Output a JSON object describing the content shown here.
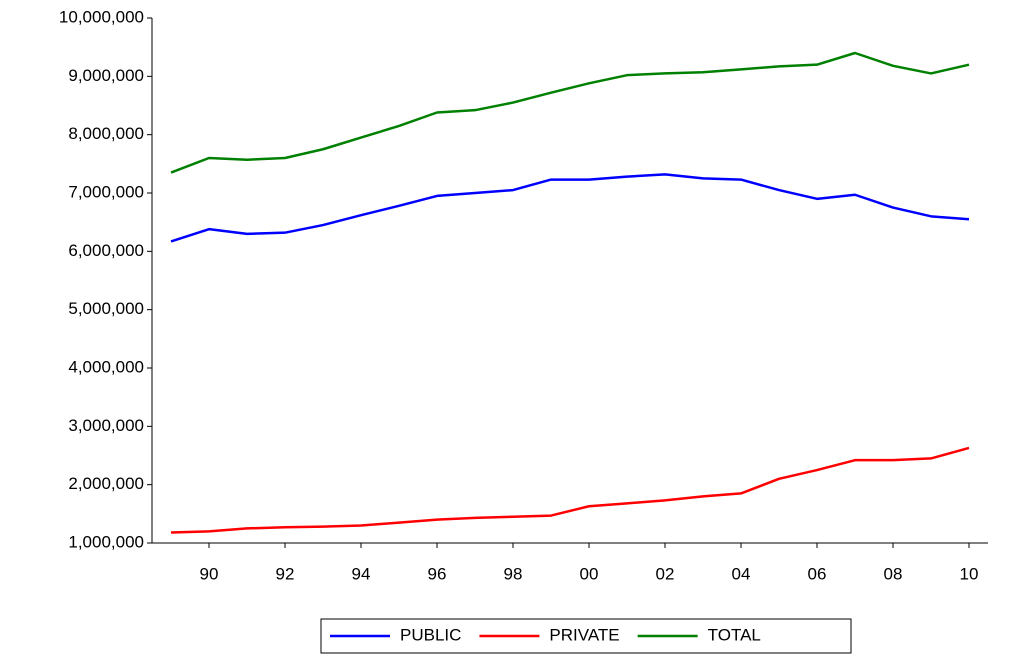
{
  "chart_data": {
    "type": "line",
    "x": [
      1989,
      1990,
      1991,
      1992,
      1993,
      1994,
      1995,
      1996,
      1997,
      1998,
      1999,
      2000,
      2001,
      2002,
      2003,
      2004,
      2005,
      2006,
      2007,
      2008,
      2009,
      2010
    ],
    "series": [
      {
        "name": "PUBLIC",
        "color": "#0000ff",
        "values": [
          6170000,
          6380000,
          6300000,
          6320000,
          6450000,
          6620000,
          6780000,
          6950000,
          7000000,
          7050000,
          7230000,
          7230000,
          7280000,
          7320000,
          7250000,
          7230000,
          7050000,
          6900000,
          6970000,
          6750000,
          6600000,
          6550000
        ]
      },
      {
        "name": "PRIVATE",
        "color": "#ff0000",
        "values": [
          1180000,
          1200000,
          1250000,
          1270000,
          1280000,
          1300000,
          1350000,
          1400000,
          1430000,
          1450000,
          1470000,
          1630000,
          1680000,
          1730000,
          1800000,
          1850000,
          2100000,
          2250000,
          2420000,
          2420000,
          2450000,
          2630000
        ]
      },
      {
        "name": "TOTAL",
        "color": "#008000",
        "values": [
          7350000,
          7600000,
          7570000,
          7600000,
          7750000,
          7950000,
          8150000,
          8380000,
          8420000,
          8550000,
          8720000,
          8880000,
          9020000,
          9050000,
          9070000,
          9120000,
          9170000,
          9200000,
          9400000,
          9180000,
          9050000,
          9200000
        ]
      }
    ],
    "xlim": [
      1988.5,
      2010.5
    ],
    "xticks": [
      {
        "value": 1990,
        "label": "90"
      },
      {
        "value": 1992,
        "label": "92"
      },
      {
        "value": 1994,
        "label": "94"
      },
      {
        "value": 1996,
        "label": "96"
      },
      {
        "value": 1998,
        "label": "98"
      },
      {
        "value": 2000,
        "label": "00"
      },
      {
        "value": 2002,
        "label": "02"
      },
      {
        "value": 2004,
        "label": "04"
      },
      {
        "value": 2006,
        "label": "06"
      },
      {
        "value": 2008,
        "label": "08"
      },
      {
        "value": 2010,
        "label": "10"
      }
    ],
    "ylim": [
      1000000,
      10000000
    ],
    "yticks": [
      {
        "value": 1000000,
        "label": "1,000,000"
      },
      {
        "value": 2000000,
        "label": "2,000,000"
      },
      {
        "value": 3000000,
        "label": "3,000,000"
      },
      {
        "value": 4000000,
        "label": "4,000,000"
      },
      {
        "value": 5000000,
        "label": "5,000,000"
      },
      {
        "value": 6000000,
        "label": "6,000,000"
      },
      {
        "value": 7000000,
        "label": "7,000,000"
      },
      {
        "value": 8000000,
        "label": "8,000,000"
      },
      {
        "value": 9000000,
        "label": "9,000,000"
      },
      {
        "value": 10000000,
        "label": "10,000,000"
      }
    ],
    "legend": "bottom"
  }
}
